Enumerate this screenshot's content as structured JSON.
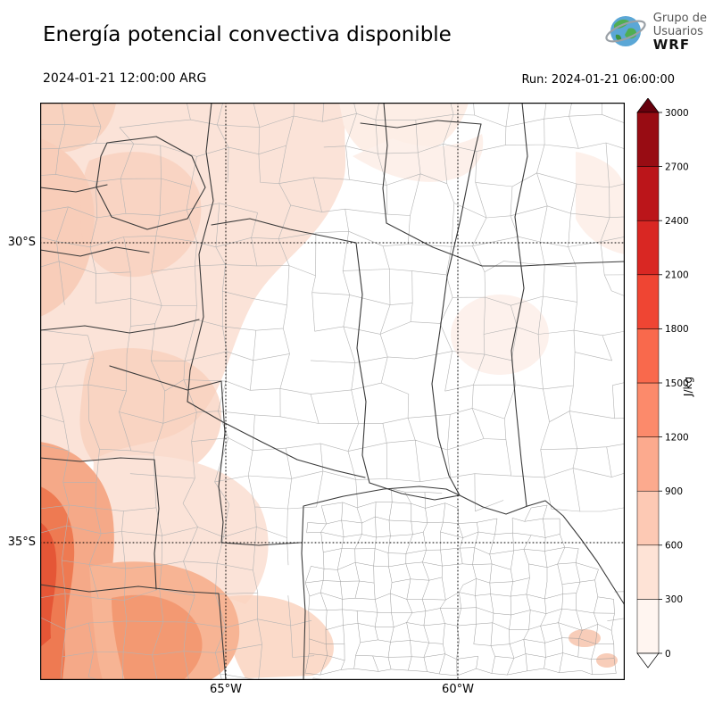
{
  "header": {
    "title": "Energía potencial convectiva disponible",
    "logo": {
      "line1": "Grupo de",
      "line2": "Usuarios",
      "line3": "WRF"
    }
  },
  "subheader": {
    "valid_time": "2024-01-21 12:00:00 ARG",
    "run_label": "Run: 2024-01-21 06:00:00"
  },
  "axes": {
    "lat": [
      "30°S",
      "35°S"
    ],
    "lon": [
      "65°W",
      "60°W"
    ]
  },
  "colorbar": {
    "unit": "J/kg",
    "ticks": [
      "0",
      "300",
      "600",
      "900",
      "1200",
      "1500",
      "1800",
      "2100",
      "2400",
      "2700",
      "3000"
    ],
    "colors": [
      "#fff5f0",
      "#fee3d6",
      "#fdc9b4",
      "#fcaa8e",
      "#fc8a6b",
      "#f9694c",
      "#ef4533",
      "#d92723",
      "#bb151a",
      "#980c13"
    ],
    "arrow_top_color": "#67000d",
    "arrow_bottom_color": "#ffffff"
  }
}
